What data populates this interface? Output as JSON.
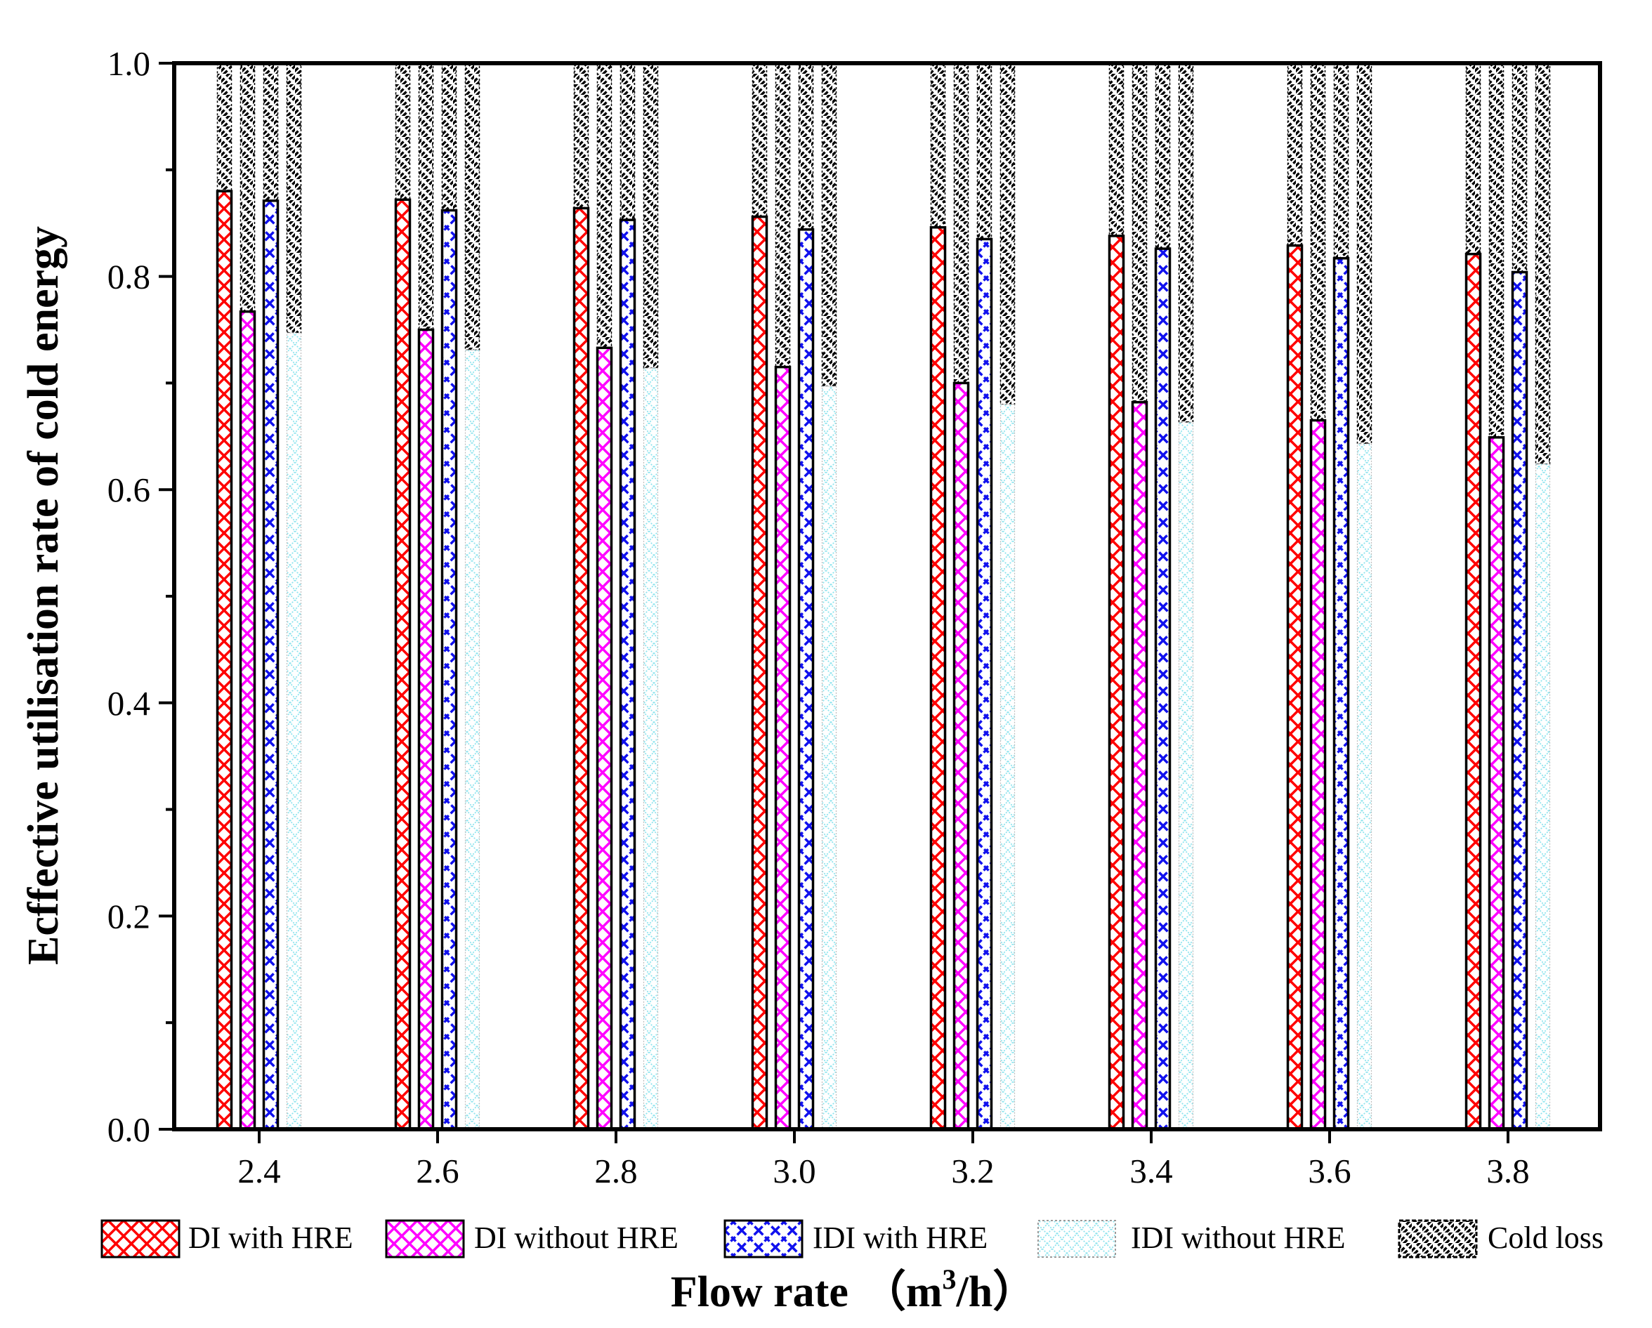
{
  "chart_data": {
    "type": "bar",
    "stacked_within_bar": true,
    "categories": [
      "2.4",
      "2.6",
      "2.8",
      "3.0",
      "3.2",
      "3.4",
      "3.6",
      "3.8"
    ],
    "series": [
      {
        "name": "DI with HRE",
        "values": [
          0.88,
          0.872,
          0.864,
          0.856,
          0.846,
          0.838,
          0.829,
          0.821
        ],
        "color": "#ff0000",
        "pattern": "crosshatch"
      },
      {
        "name": "DI without HRE",
        "values": [
          0.767,
          0.75,
          0.733,
          0.715,
          0.7,
          0.682,
          0.665,
          0.649
        ],
        "color": "#ff00ff",
        "pattern": "crosshatch"
      },
      {
        "name": "IDI with HRE",
        "values": [
          0.871,
          0.862,
          0.853,
          0.844,
          0.835,
          0.826,
          0.817,
          0.804
        ],
        "color": "#0000ff",
        "pattern": "wave-cross"
      },
      {
        "name": "IDI without HRE",
        "values": [
          0.747,
          0.731,
          0.714,
          0.697,
          0.68,
          0.663,
          0.643,
          0.624
        ],
        "color": "#66ddee",
        "pattern": "dotted"
      }
    ],
    "remainder_series": {
      "name": "Cold loss",
      "color": "#000000",
      "pattern": "diagonal"
    },
    "title": "",
    "xlabel_main": "Flow rate",
    "xlabel_unit_base": "（m",
    "xlabel_unit_sup": "3",
    "xlabel_unit_tail": "/h）",
    "ylabel": "Ecffective utilisation rate of cold energy",
    "ylim": [
      0,
      1.0
    ],
    "yticks": [
      "0.0",
      "0.2",
      "0.4",
      "0.6",
      "0.8",
      "1.0"
    ],
    "grid": false,
    "legend_position": "bottom"
  }
}
